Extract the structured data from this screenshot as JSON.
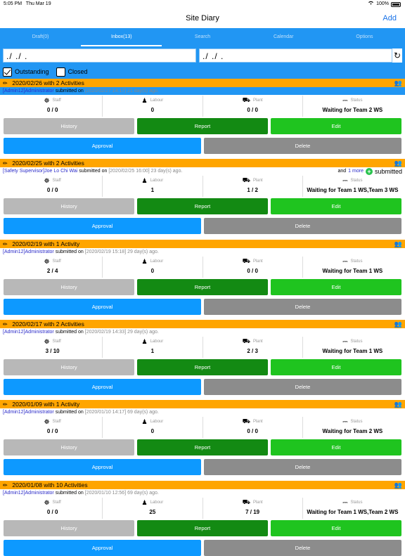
{
  "status_bar": {
    "time": "5:05 PM",
    "date": "Thu Mar 19",
    "battery": "100%"
  },
  "nav": {
    "title": "Site Diary",
    "add_label": "Add"
  },
  "tabs": [
    {
      "label": "Draft(0)"
    },
    {
      "label": "Inbox(13)"
    },
    {
      "label": "Search"
    },
    {
      "label": "Calendar"
    },
    {
      "label": "Options"
    }
  ],
  "filter": {
    "date_from": "./ ./ .",
    "date_to": "./ ./ .",
    "outstanding_label": "Outstanding",
    "closed_label": "Closed"
  },
  "labels": {
    "staff": "Staff",
    "labour": "Labour",
    "plant": "Plant",
    "status": "Status",
    "history": "History",
    "report": "Report",
    "edit": "Edit",
    "approval": "Approval",
    "delete": "Delete",
    "submitted_on": "submitted on"
  },
  "entries": [
    {
      "header": "2020/02/26 with 2 Activities",
      "who": "[Admin12]Administrator",
      "ts": "[2020/02/27 14:17] 21 day(s) ago.",
      "staff": "0 / 0",
      "labour": "0",
      "plant": "0 / 0",
      "status": "Waiting for Team 2 WS"
    },
    {
      "header": "2020/02/25 with 2 Activities",
      "who": "[Safety Supervisor]Joe Lo Chi Wai",
      "ts": "[2020/02/25 16:00] 23 day(s) ago.",
      "more_prefix": "and",
      "more_link": "1 more",
      "more_suffix": "submitted",
      "staff": "0 / 0",
      "labour": "1",
      "plant": "1 / 2",
      "status": "Waiting for Team 1 WS,Team 3 WS"
    },
    {
      "header": "2020/02/19 with 1 Activity",
      "who": "[Admin12]Administrator",
      "ts": "[2020/02/19 15:18] 29 day(s) ago.",
      "staff": "2 / 4",
      "labour": "0",
      "plant": "0 / 0",
      "status": "Waiting for Team 1 WS"
    },
    {
      "header": "2020/02/17 with 2 Activities",
      "who": "[Admin12]Administrator",
      "ts": "[2020/02/19 14:33] 29 day(s) ago.",
      "staff": "3 / 10",
      "labour": "1",
      "plant": "2 / 3",
      "status": "Waiting for Team 1 WS"
    },
    {
      "header": "2020/01/09 with 1 Activity",
      "who": "[Admin12]Administrator",
      "ts": "[2020/01/10 14:17] 69 day(s) ago.",
      "staff": "0 / 0",
      "labour": "0",
      "plant": "0 / 0",
      "status": "Waiting for Team 2 WS"
    },
    {
      "header": "2020/01/08 with 10 Activities",
      "who": "[Admin12]Administrator",
      "ts": "[2020/01/10 12:56] 69 day(s) ago.",
      "staff": "0 / 0",
      "labour": "25",
      "plant": "7 / 19",
      "status": "Waiting for Team 1 WS,Team 2 WS"
    }
  ]
}
